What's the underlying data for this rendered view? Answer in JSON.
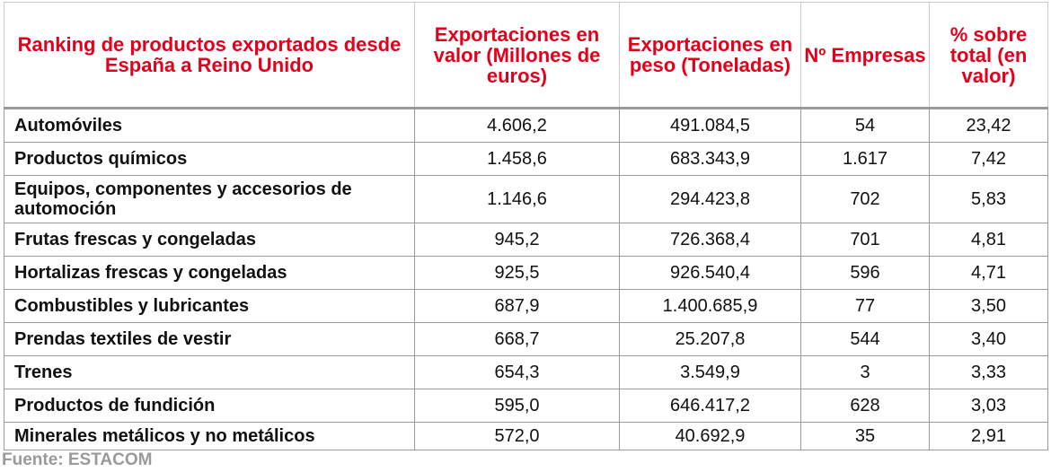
{
  "table": {
    "headers": [
      "Ranking de productos exportados desde España a Reino Unido",
      "Exportaciones en valor (Millones de euros)",
      "Exportaciones en peso (Toneladas)",
      "Nº Empresas",
      "% sobre total (en valor)"
    ],
    "rows": [
      [
        "Automóviles",
        "4.606,2",
        "491.084,5",
        "54",
        "23,42"
      ],
      [
        "Productos químicos",
        "1.458,6",
        "683.343,9",
        "1.617",
        "7,42"
      ],
      [
        "Equipos, componentes y accesorios de automoción",
        "1.146,6",
        "294.423,8",
        "702",
        "5,83"
      ],
      [
        "Frutas frescas y congeladas",
        "945,2",
        "726.368,4",
        "701",
        "4,81"
      ],
      [
        "Hortalizas frescas y congeladas",
        "925,5",
        "926.540,4",
        "596",
        "4,71"
      ],
      [
        "Combustibles y lubricantes",
        "687,9",
        "1.400.685,9",
        "77",
        "3,50"
      ],
      [
        "Prendas textiles de vestir",
        "668,7",
        "25.207,8",
        "544",
        "3,40"
      ],
      [
        "Trenes",
        "654,3",
        "3.549,9",
        "3",
        "3,33"
      ],
      [
        "Productos de fundición",
        "595,0",
        "646.417,2",
        "628",
        "3,03"
      ],
      [
        "Minerales metálicos y no metálicos",
        "572,0",
        "40.692,9",
        "35",
        "2,91"
      ]
    ]
  },
  "source": "Fuente: ESTACOM",
  "colors": {
    "header_text": "#e3001b",
    "border": "#9a9a9a",
    "source_text": "#9a9a9a"
  }
}
